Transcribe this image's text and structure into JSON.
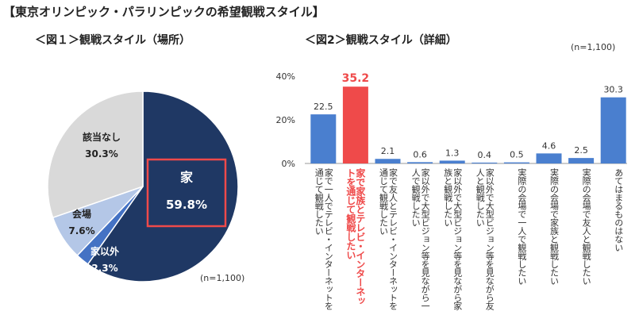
{
  "page": {
    "title": "【東京オリンピック・パラリンピックの希望観戦スタイル】"
  },
  "chart_data": [
    {
      "type": "pie",
      "title": "＜図１＞観戦スタイル（場所）",
      "note": "(n=1,100)",
      "slices": [
        {
          "label": "家",
          "value": 59.8,
          "value_text": "59.8%",
          "color": "#1f3864"
        },
        {
          "label": "家以外",
          "value": 2.3,
          "value_text": "2.3%",
          "color": "#4472c4"
        },
        {
          "label": "会場",
          "value": 7.6,
          "value_text": "7.6%",
          "color": "#b4c7e7"
        },
        {
          "label": "該当なし",
          "value": 30.3,
          "value_text": "30.3%",
          "color": "#d9d9d9"
        }
      ]
    },
    {
      "type": "bar",
      "title": "＜図2＞観戦スタイル（詳細）",
      "note": "(n=1,100)",
      "ylim": [
        0,
        40
      ],
      "yticks": [
        "0%",
        "20%",
        "40%"
      ],
      "highlight_color": "#ef4a4a",
      "bar_color": "#4a7fcf",
      "categories": [
        "家で一人でテレビ・インターネットを通じて観戦したい",
        "家で家族とテレビ・インターネットを通じて観戦したい",
        "家で友人とテレビ・インターネットを通じて観戦したい",
        "家以外で大型ビジョン等を見ながら一人で観戦したい",
        "家以外で大型ビジョン等を見ながら家族と観戦したい",
        "家以外で大型ビジョン等を見ながら友人と観戦したい",
        "実際の会場で一人で観戦したい",
        "実際の会場で家族と観戦したい",
        "実際の会場で友人と観戦したい",
        "あてはまるものはない"
      ],
      "values": [
        22.5,
        35.2,
        2.1,
        0.6,
        1.3,
        0.4,
        0.5,
        4.6,
        2.5,
        30.3
      ],
      "value_labels": [
        "22.5",
        "35.2",
        "2.1",
        "0.6",
        "1.3",
        "0.4",
        "0.5",
        "4.6",
        "2.5",
        "30.3"
      ],
      "highlight_index": 1
    }
  ]
}
